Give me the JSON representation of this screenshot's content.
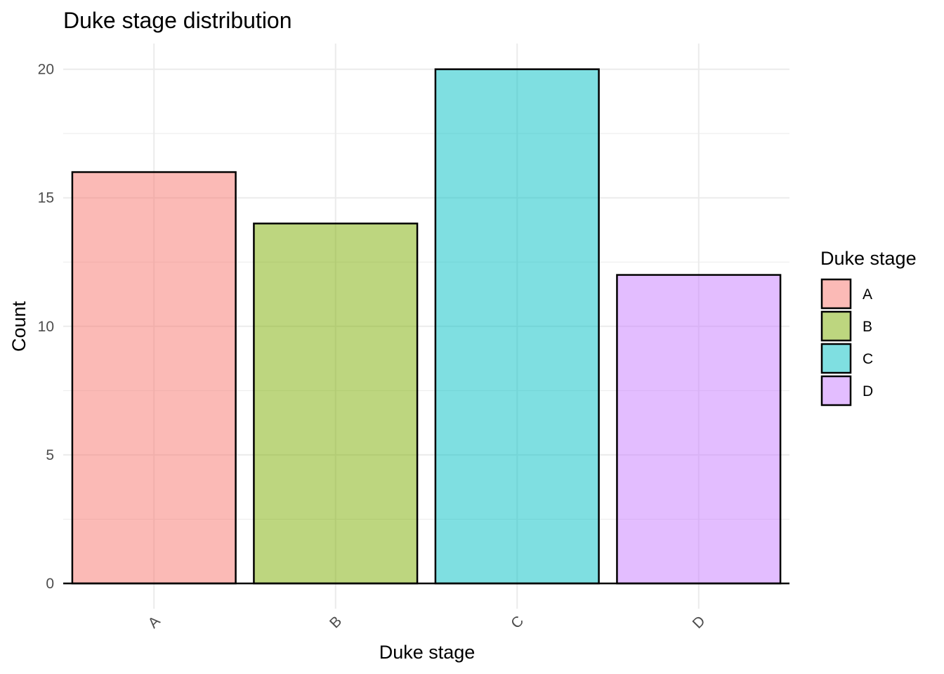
{
  "chart_data": {
    "type": "bar",
    "title": "Duke stage distribution",
    "xlabel": "Duke stage",
    "ylabel": "Count",
    "categories": [
      "A",
      "B",
      "C",
      "D"
    ],
    "values": [
      16,
      14,
      20,
      12
    ],
    "colors": [
      "#F8766D",
      "#7CAE00",
      "#00BFC4",
      "#C77CFF"
    ],
    "ylim": [
      0,
      21
    ],
    "yticks": [
      0,
      5,
      10,
      15,
      20
    ],
    "ytick_labels": [
      "0",
      "5",
      "10",
      "15",
      "20"
    ],
    "xtick_rotation": 45,
    "grid": true,
    "legend": {
      "title": "Duke stage",
      "entries": [
        "A",
        "B",
        "C",
        "D"
      ],
      "position": "right"
    }
  }
}
